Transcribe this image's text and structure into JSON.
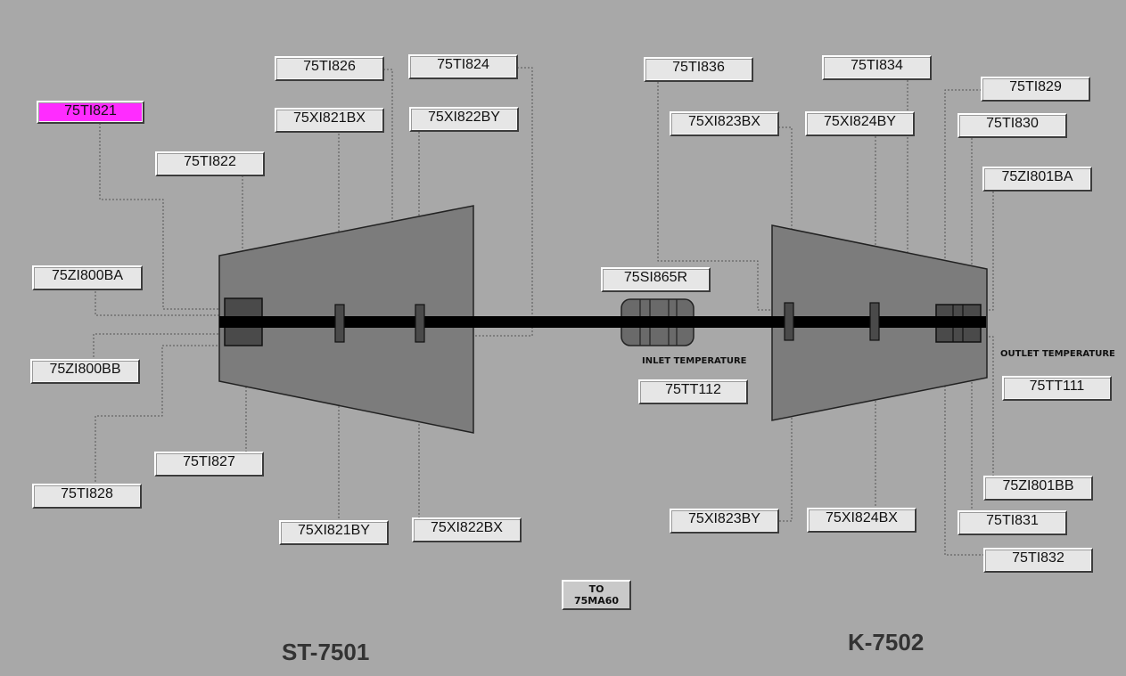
{
  "equipment": {
    "turbine_label": "ST-7501",
    "compressor_label": "K-7502"
  },
  "annotations": {
    "inlet_temperature": "INLET TEMPERATURE",
    "outlet_temperature": "OUTLET TEMPERATURE"
  },
  "navigation": {
    "to_ma60_line1": "TO",
    "to_ma60_line2": "75MA60"
  },
  "colors": {
    "background": "#a8a8a8",
    "alarm": "#ff2cff",
    "casing": "#7c7c7c",
    "shaft": "#000000"
  },
  "tags": {
    "ti821": "75TI821",
    "ti822": "75TI822",
    "zi800ba": "75ZI800BA",
    "zi800bb": "75ZI800BB",
    "ti828": "75TI828",
    "ti827": "75TI827",
    "ti826": "75TI826",
    "xi821bx": "75XI821BX",
    "xi821by": "75XI821BY",
    "ti824": "75TI824",
    "xi822by": "75XI822BY",
    "xi822bx": "75XI822BX",
    "si865r": "75SI865R",
    "tt112": "75TT112",
    "ti836": "75TI836",
    "xi823bx": "75XI823BX",
    "xi823by": "75XI823BY",
    "ti834": "75TI834",
    "xi824by": "75XI824BY",
    "xi824bx": "75XI824BX",
    "ti829": "75TI829",
    "ti830": "75TI830",
    "zi801ba": "75ZI801BA",
    "tt111": "75TT111",
    "zi801bb": "75ZI801BB",
    "ti831": "75TI831",
    "ti832": "75TI832"
  }
}
